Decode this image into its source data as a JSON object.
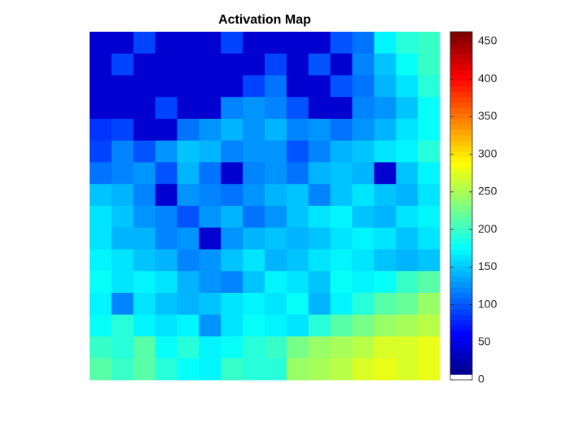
{
  "chart_data": {
    "type": "heatmap",
    "title": "Activation Map",
    "colormap": "jet",
    "clim": [
      0,
      463
    ],
    "colorbar_ticks": [
      0,
      50,
      100,
      150,
      200,
      250,
      300,
      350,
      400,
      450
    ],
    "z": [
      [
        40,
        40,
        90,
        40,
        40,
        40,
        90,
        40,
        40,
        40,
        40,
        100,
        110,
        170,
        190,
        200
      ],
      [
        40,
        90,
        40,
        40,
        40,
        40,
        40,
        40,
        90,
        40,
        100,
        40,
        120,
        150,
        180,
        200
      ],
      [
        40,
        40,
        40,
        40,
        40,
        40,
        40,
        90,
        110,
        40,
        40,
        100,
        110,
        140,
        160,
        190
      ],
      [
        40,
        40,
        40,
        90,
        40,
        40,
        120,
        130,
        120,
        100,
        40,
        40,
        120,
        130,
        150,
        180
      ],
      [
        80,
        90,
        40,
        40,
        110,
        130,
        140,
        130,
        140,
        120,
        130,
        110,
        130,
        140,
        160,
        180
      ],
      [
        90,
        120,
        100,
        130,
        150,
        140,
        120,
        130,
        130,
        100,
        120,
        140,
        150,
        160,
        170,
        190
      ],
      [
        110,
        120,
        130,
        100,
        140,
        110,
        40,
        120,
        130,
        110,
        140,
        150,
        140,
        40,
        150,
        170
      ],
      [
        150,
        140,
        120,
        40,
        130,
        120,
        110,
        130,
        140,
        150,
        120,
        150,
        160,
        150,
        140,
        160
      ],
      [
        160,
        150,
        130,
        120,
        100,
        130,
        140,
        110,
        130,
        150,
        160,
        170,
        150,
        140,
        160,
        170
      ],
      [
        160,
        140,
        140,
        120,
        130,
        40,
        130,
        140,
        150,
        140,
        150,
        160,
        170,
        160,
        150,
        160
      ],
      [
        170,
        160,
        150,
        140,
        120,
        130,
        150,
        160,
        140,
        150,
        160,
        170,
        160,
        150,
        140,
        150
      ],
      [
        180,
        160,
        170,
        160,
        140,
        130,
        120,
        150,
        170,
        160,
        150,
        180,
        170,
        180,
        200,
        210
      ],
      [
        170,
        120,
        160,
        150,
        140,
        150,
        160,
        170,
        160,
        180,
        140,
        170,
        190,
        210,
        220,
        240
      ],
      [
        180,
        190,
        170,
        160,
        170,
        130,
        160,
        180,
        170,
        160,
        190,
        210,
        230,
        240,
        250,
        260
      ],
      [
        200,
        190,
        210,
        180,
        190,
        170,
        180,
        190,
        200,
        230,
        240,
        250,
        260,
        270,
        270,
        280
      ],
      [
        210,
        200,
        210,
        190,
        180,
        170,
        200,
        190,
        190,
        240,
        250,
        260,
        270,
        280,
        270,
        280
      ]
    ]
  }
}
